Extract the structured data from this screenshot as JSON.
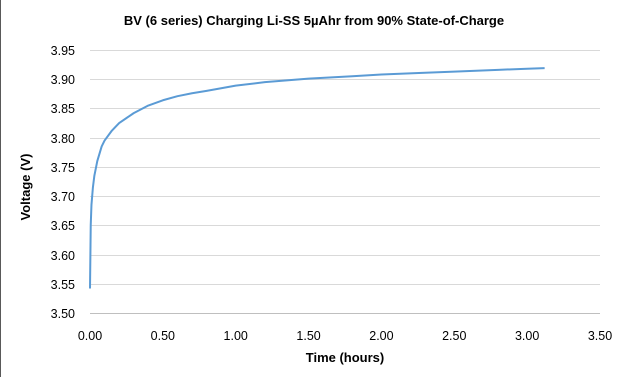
{
  "chart_data": {
    "type": "line",
    "title": "BV (6 series) Charging Li-SS 5µAhr from 90% State-of-Charge",
    "xlabel": "Time (hours)",
    "ylabel": "Voltage (V)",
    "xlim": [
      0,
      3.5
    ],
    "ylim": [
      3.5,
      3.95
    ],
    "xticks": [
      "0.00",
      "0.50",
      "1.00",
      "1.50",
      "2.00",
      "2.50",
      "3.00",
      "3.50"
    ],
    "yticks": [
      "3.50",
      "3.55",
      "3.60",
      "3.65",
      "3.70",
      "3.75",
      "3.80",
      "3.85",
      "3.90",
      "3.95"
    ],
    "grid": "horizontal",
    "legend": "none",
    "series": [
      {
        "color": "#5b9bd5",
        "x": [
          0.0,
          0.005,
          0.01,
          0.02,
          0.03,
          0.05,
          0.08,
          0.1,
          0.15,
          0.2,
          0.3,
          0.4,
          0.5,
          0.6,
          0.7,
          0.8,
          1.0,
          1.2,
          1.5,
          1.8,
          2.0,
          2.3,
          2.5,
          2.8,
          3.0,
          3.12
        ],
        "y": [
          3.542,
          3.65,
          3.685,
          3.715,
          3.735,
          3.76,
          3.785,
          3.795,
          3.812,
          3.825,
          3.842,
          3.855,
          3.864,
          3.871,
          3.876,
          3.88,
          3.889,
          3.895,
          3.901,
          3.905,
          3.908,
          3.911,
          3.913,
          3.916,
          3.918,
          3.919
        ]
      }
    ]
  }
}
